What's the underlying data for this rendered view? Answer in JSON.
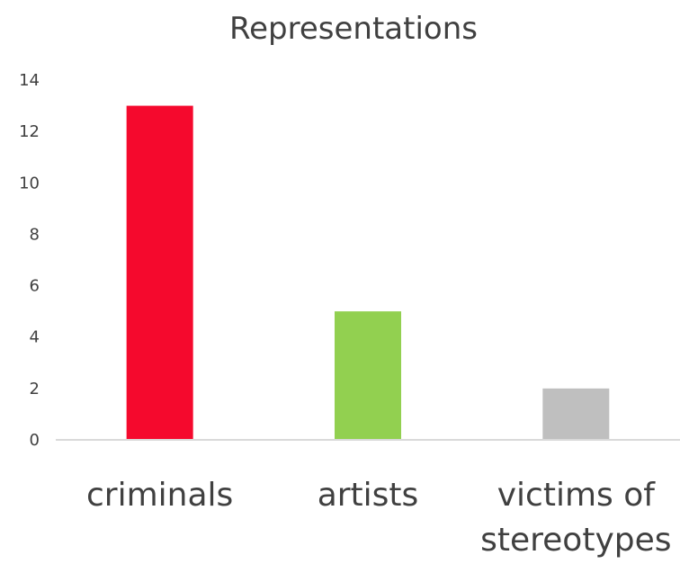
{
  "chart_data": {
    "type": "bar",
    "title": "Representations",
    "categories": [
      [
        "criminals"
      ],
      [
        "artists"
      ],
      [
        "victims of",
        "stereotypes"
      ]
    ],
    "values": [
      13,
      5,
      2
    ],
    "colors": [
      "#f5092d",
      "#92d050",
      "#bfbfbf"
    ],
    "ylim": [
      0,
      14
    ],
    "yticks": [
      "0",
      "2",
      "4",
      "6",
      "8",
      "10",
      "12",
      "14"
    ],
    "grid": false,
    "legend": "none"
  }
}
